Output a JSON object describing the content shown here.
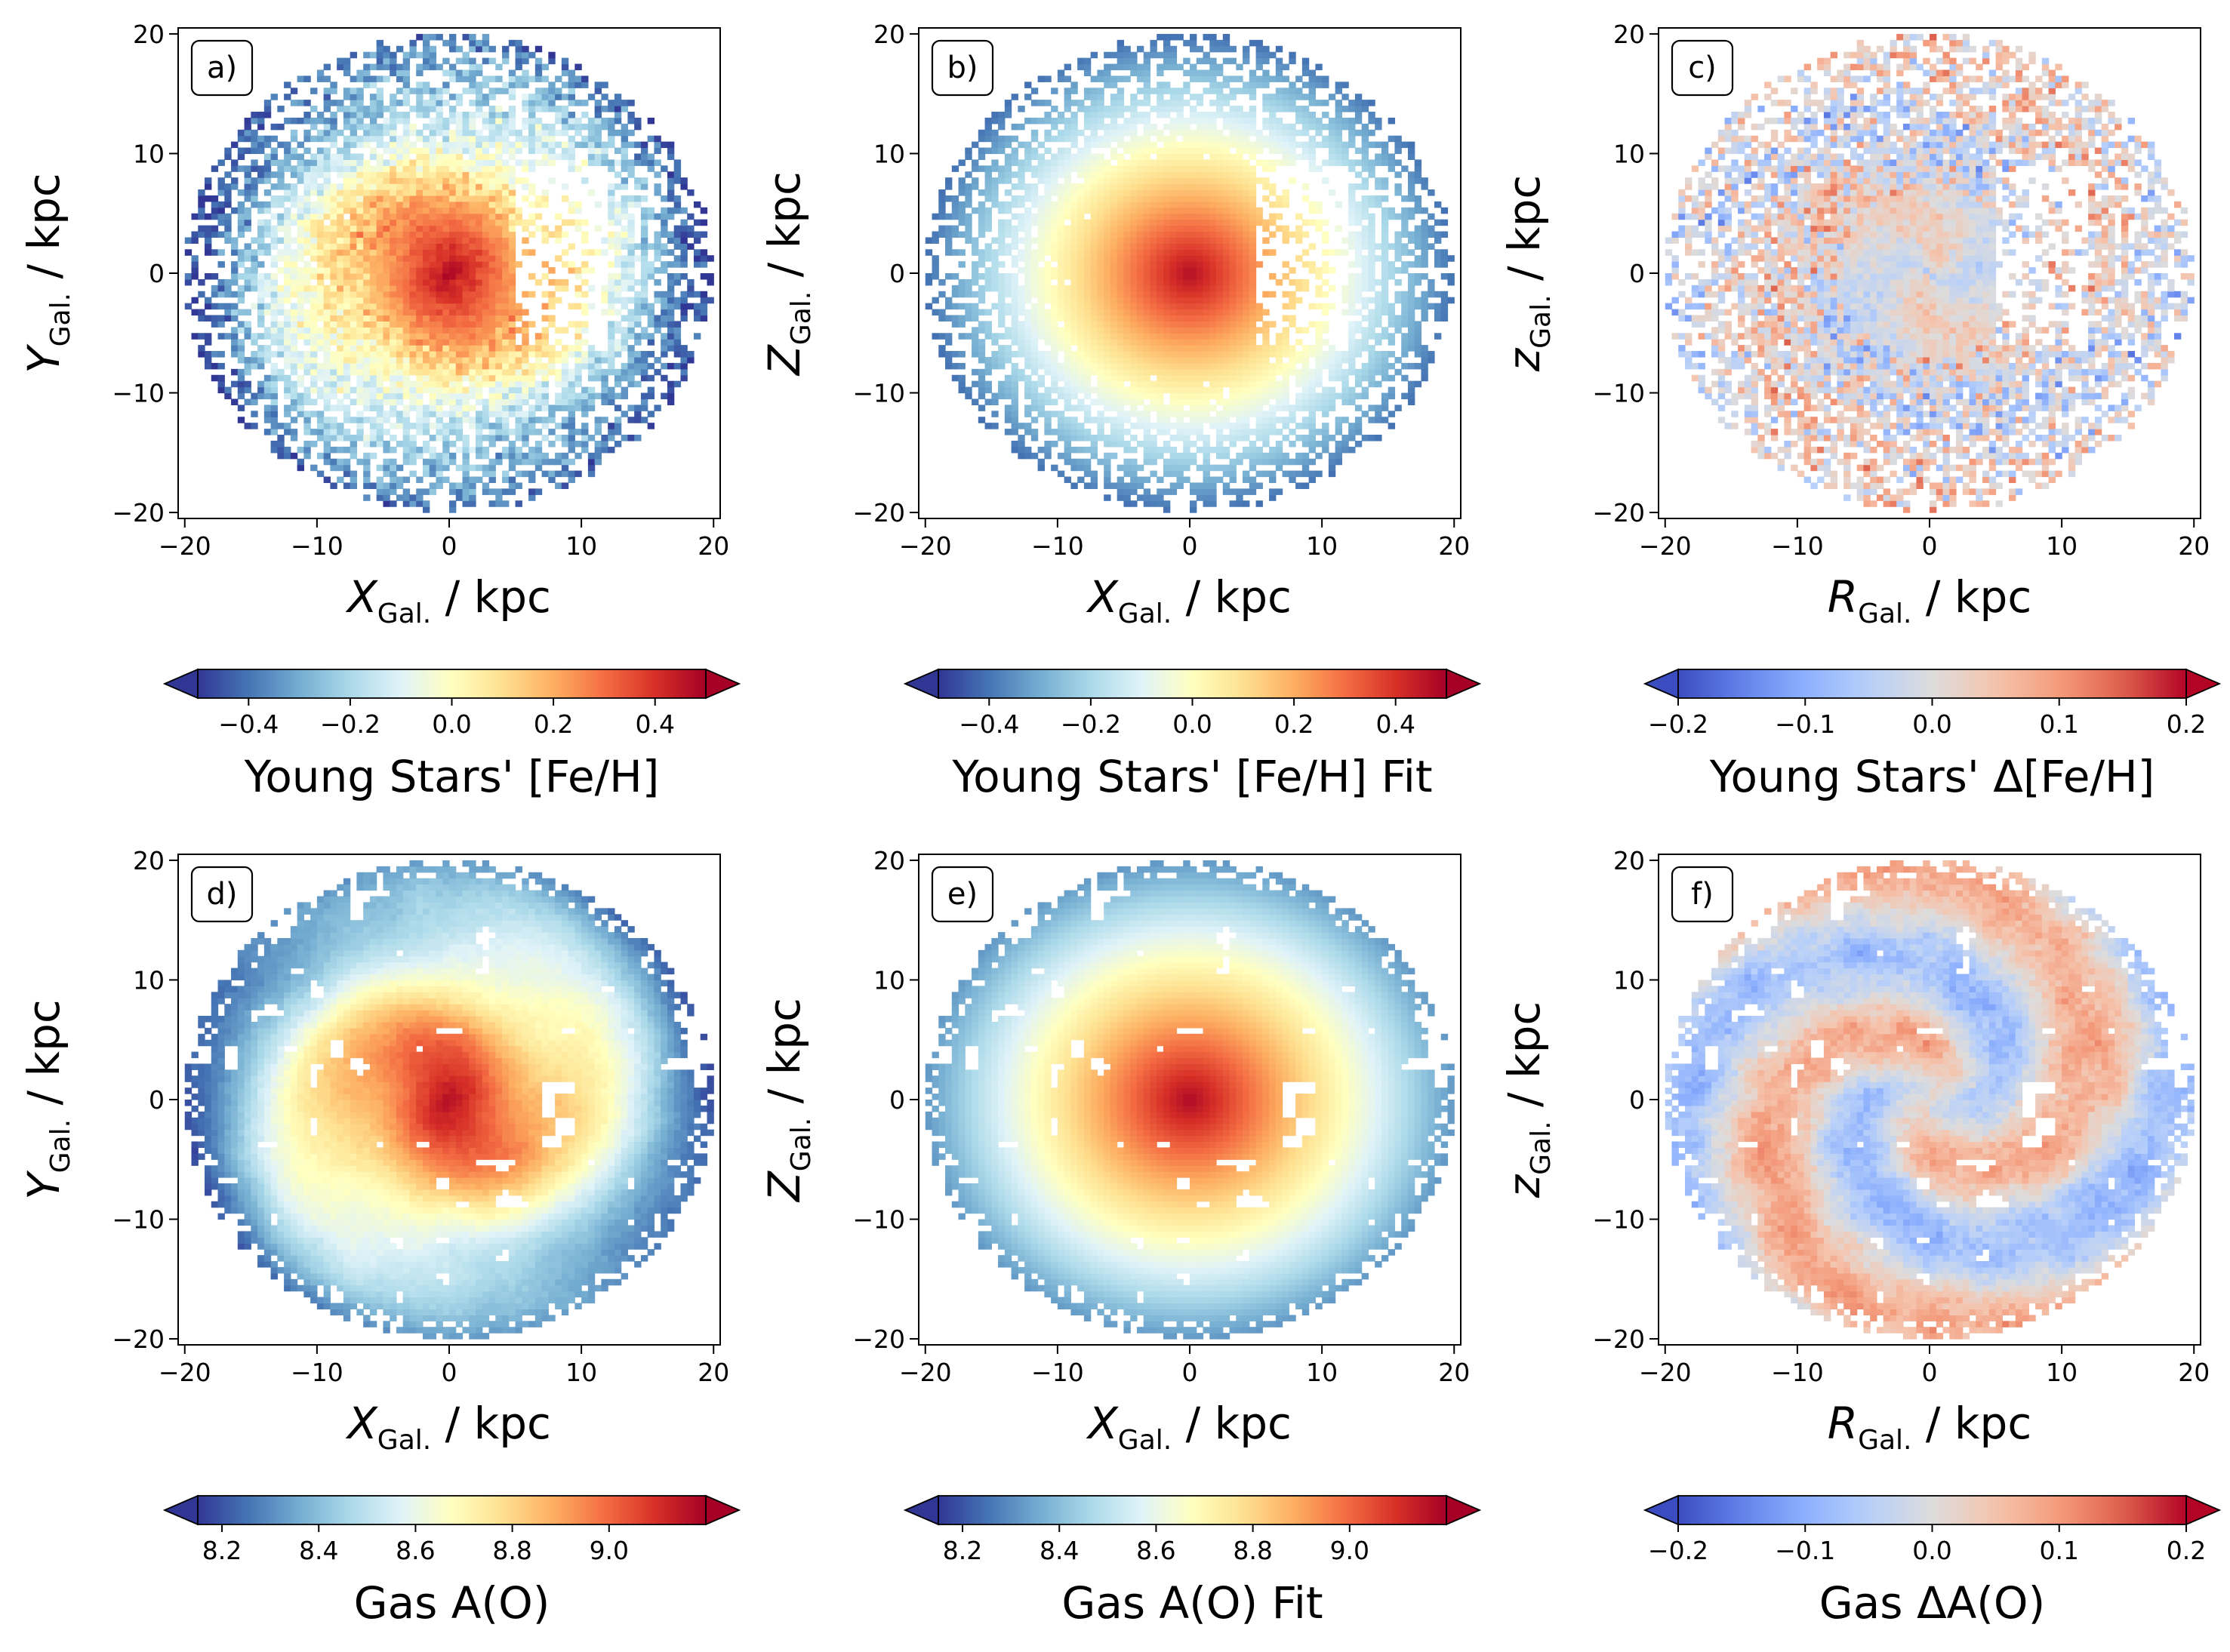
{
  "figure": {
    "panels": [
      {
        "id": "a",
        "tag": "a)",
        "xlabel": {
          "main": "X",
          "sub": "Gal.",
          "unit": " / kpc"
        },
        "ylabel": {
          "main": "Y",
          "sub": "Gal.",
          "unit": " / kpc"
        },
        "colorbar_label": "Young Stars' [Fe/H]",
        "cmap": "RdYlBu_r",
        "field": "observed_stars"
      },
      {
        "id": "b",
        "tag": "b)",
        "xlabel": {
          "main": "X",
          "sub": "Gal.",
          "unit": " / kpc"
        },
        "ylabel": {
          "main": "Z",
          "sub": "Gal.",
          "unit": " / kpc"
        },
        "colorbar_label": "Young Stars' [Fe/H] Fit",
        "cmap": "RdYlBu_r",
        "field": "fit_stars"
      },
      {
        "id": "c",
        "tag": "c)",
        "xlabel": {
          "main": "R",
          "sub": "Gal.",
          "unit": " / kpc"
        },
        "ylabel": {
          "main": "z",
          "sub": "Gal.",
          "unit": " / kpc"
        },
        "colorbar_label": "Young Stars' Δ[Fe/H]",
        "cmap": "coolwarm",
        "field": "residual_stars"
      },
      {
        "id": "d",
        "tag": "d)",
        "xlabel": {
          "main": "X",
          "sub": "Gal.",
          "unit": " / kpc"
        },
        "ylabel": {
          "main": "Y",
          "sub": "Gal.",
          "unit": " / kpc"
        },
        "colorbar_label": "Gas A(O)",
        "cmap": "RdYlBu_r",
        "field": "observed_gas"
      },
      {
        "id": "e",
        "tag": "e)",
        "xlabel": {
          "main": "X",
          "sub": "Gal.",
          "unit": " / kpc"
        },
        "ylabel": {
          "main": "Z",
          "sub": "Gal.",
          "unit": " / kpc"
        },
        "colorbar_label": "Gas A(O) Fit",
        "cmap": "RdYlBu_r",
        "field": "fit_gas"
      },
      {
        "id": "f",
        "tag": "f)",
        "xlabel": {
          "main": "R",
          "sub": "Gal.",
          "unit": " / kpc"
        },
        "ylabel": {
          "main": "z",
          "sub": "Gal.",
          "unit": " / kpc"
        },
        "colorbar_label": "Gas ΔA(O)",
        "cmap": "coolwarm",
        "field": "residual_gas"
      }
    ]
  },
  "chart_data": [
    {
      "type": "heatmap",
      "panel": "a",
      "xlim": [
        -20.5,
        20.5
      ],
      "ylim": [
        -20.5,
        20.5
      ],
      "xticks": [
        -20,
        -10,
        0,
        10,
        20
      ],
      "yticks": [
        -20,
        -10,
        0,
        10,
        20
      ],
      "colorbar": {
        "min": -0.5,
        "max": 0.5,
        "ticks": [
          -0.4,
          -0.2,
          0.0,
          0.2,
          0.4
        ],
        "tick_labels": [
          "−0.4",
          "−0.2",
          "0.0",
          "0.2",
          "0.4"
        ],
        "extend": "both"
      },
      "description_values": {
        "center_value": 0.45,
        "edge_value": -0.4,
        "grid_cells_per_axis": 80,
        "disk_radius": 20
      }
    },
    {
      "type": "heatmap",
      "panel": "b",
      "xlim": [
        -20.5,
        20.5
      ],
      "ylim": [
        -20.5,
        20.5
      ],
      "xticks": [
        -20,
        -10,
        0,
        10,
        20
      ],
      "yticks": [
        -20,
        -10,
        0,
        10,
        20
      ],
      "colorbar": {
        "min": -0.5,
        "max": 0.5,
        "ticks": [
          -0.4,
          -0.2,
          0.0,
          0.2,
          0.4
        ],
        "tick_labels": [
          "−0.4",
          "−0.2",
          "0.0",
          "0.2",
          "0.4"
        ],
        "extend": "both"
      },
      "description_values": {
        "center_value": 0.45,
        "edge_value": -0.35,
        "grid_cells_per_axis": 80,
        "disk_radius": 20
      }
    },
    {
      "type": "heatmap",
      "panel": "c",
      "xlim": [
        -20.5,
        20.5
      ],
      "ylim": [
        -20.5,
        20.5
      ],
      "xticks": [
        -20,
        -10,
        0,
        10,
        20
      ],
      "yticks": [
        -20,
        -10,
        0,
        10,
        20
      ],
      "colorbar": {
        "min": -0.2,
        "max": 0.2,
        "ticks": [
          -0.2,
          -0.1,
          0.0,
          0.1,
          0.2
        ],
        "tick_labels": [
          "−0.2",
          "−0.1",
          "0.0",
          "0.1",
          "0.2"
        ],
        "extend": "both"
      },
      "description_values": {
        "center_value": 0.0,
        "edge_spread": 0.2,
        "grid_cells_per_axis": 80,
        "disk_radius": 20
      }
    },
    {
      "type": "heatmap",
      "panel": "d",
      "xlim": [
        -20.5,
        20.5
      ],
      "ylim": [
        -20.5,
        20.5
      ],
      "xticks": [
        -20,
        -10,
        0,
        10,
        20
      ],
      "yticks": [
        -20,
        -10,
        0,
        10,
        20
      ],
      "colorbar": {
        "min": 8.15,
        "max": 9.2,
        "ticks": [
          8.2,
          8.4,
          8.6,
          8.8,
          9.0
        ],
        "tick_labels": [
          "8.2",
          "8.4",
          "8.6",
          "8.8",
          "9.0"
        ],
        "extend": "both"
      },
      "description_values": {
        "center_value": 9.15,
        "edge_value": 8.3,
        "grid_cells_per_axis": 80,
        "disk_radius": 20
      }
    },
    {
      "type": "heatmap",
      "panel": "e",
      "xlim": [
        -20.5,
        20.5
      ],
      "ylim": [
        -20.5,
        20.5
      ],
      "xticks": [
        -20,
        -10,
        0,
        10,
        20
      ],
      "yticks": [
        -20,
        -10,
        0,
        10,
        20
      ],
      "colorbar": {
        "min": 8.15,
        "max": 9.2,
        "ticks": [
          8.2,
          8.4,
          8.6,
          8.8,
          9.0
        ],
        "tick_labels": [
          "8.2",
          "8.4",
          "8.6",
          "8.8",
          "9.0"
        ],
        "extend": "both"
      },
      "description_values": {
        "center_value": 9.15,
        "edge_value": 8.35,
        "grid_cells_per_axis": 80,
        "disk_radius": 20
      }
    },
    {
      "type": "heatmap",
      "panel": "f",
      "xlim": [
        -20.5,
        20.5
      ],
      "ylim": [
        -20.5,
        20.5
      ],
      "xticks": [
        -20,
        -10,
        0,
        10,
        20
      ],
      "yticks": [
        -20,
        -10,
        0,
        10,
        20
      ],
      "colorbar": {
        "min": -0.2,
        "max": 0.2,
        "ticks": [
          -0.2,
          -0.1,
          0.0,
          0.1,
          0.2
        ],
        "tick_labels": [
          "−0.2",
          "−0.1",
          "0.0",
          "0.1",
          "0.2"
        ],
        "extend": "both"
      },
      "description_values": {
        "center_value": 0.0,
        "edge_spread": 0.15,
        "grid_cells_per_axis": 80,
        "disk_radius": 20
      }
    }
  ]
}
